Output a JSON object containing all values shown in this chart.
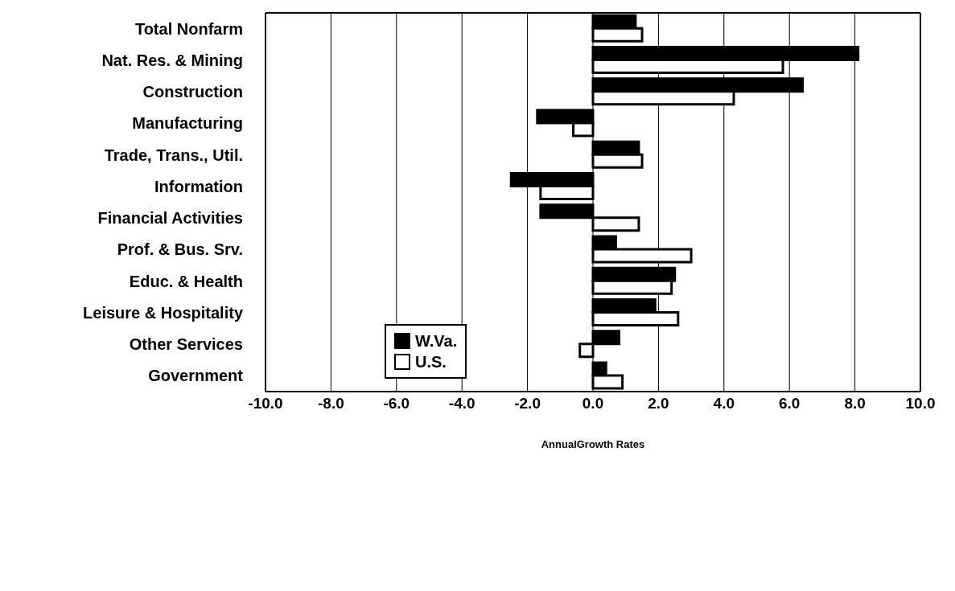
{
  "chart_data": {
    "type": "bar",
    "orientation": "horizontal",
    "xlabel": "AnnualGrowth Rates",
    "categories": [
      "Total Nonfarm",
      "Nat. Res. & Mining",
      "Construction",
      "Manufacturing",
      "Trade, Trans., Util.",
      "Information",
      "Financial Activities",
      "Prof. & Bus. Srv.",
      "Educ. & Health",
      "Leisure & Hospitality",
      "Other Services",
      "Government"
    ],
    "series": [
      {
        "name": "W.Va.",
        "color": "#000000",
        "values": [
          1.3,
          8.1,
          6.4,
          -1.7,
          1.4,
          -2.5,
          -1.6,
          0.7,
          2.5,
          1.9,
          0.8,
          0.4
        ]
      },
      {
        "name": "U.S.",
        "color": "#ffffff",
        "values": [
          1.5,
          5.8,
          4.3,
          -0.6,
          1.5,
          -1.6,
          1.4,
          3.0,
          2.4,
          2.6,
          -0.4,
          0.9
        ]
      }
    ],
    "xlim": [
      -10,
      10
    ],
    "xticks": [
      {
        "value": -10,
        "label": "-10.0"
      },
      {
        "value": -8,
        "label": "-8.0"
      },
      {
        "value": -6,
        "label": "-6.0"
      },
      {
        "value": -4,
        "label": "-4.0"
      },
      {
        "value": -2,
        "label": "-2.0"
      },
      {
        "value": 0,
        "label": "0.0"
      },
      {
        "value": 2,
        "label": "2.0"
      },
      {
        "value": 4,
        "label": "4.0"
      },
      {
        "value": 6,
        "label": "6.0"
      },
      {
        "value": 8,
        "label": "8.0"
      },
      {
        "value": 10,
        "label": "10.0"
      }
    ],
    "grid": "x",
    "legend": "bottom left"
  }
}
